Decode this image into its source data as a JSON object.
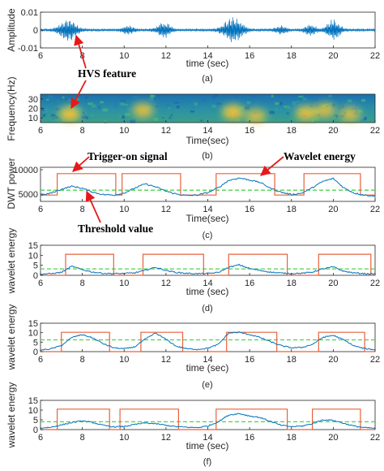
{
  "chart_data": [
    {
      "type": "line",
      "x_range": [
        6,
        22
      ],
      "xticks": [
        6,
        8,
        10,
        12,
        14,
        16,
        18,
        20,
        22
      ],
      "ylim": [
        -0.01,
        0.01
      ],
      "yticks": [
        "0.01",
        "0",
        "-0.01"
      ],
      "xlabel": "time (sec)",
      "ylabel": "Amplitude",
      "caption": "(a)",
      "series": [
        {
          "color": "#0072BD",
          "bursts": [
            {
              "center": 7.3,
              "width": 0.45,
              "amp": 0.006
            },
            {
              "center": 10.2,
              "width": 0.3,
              "amp": 0.002
            },
            {
              "center": 11.9,
              "width": 0.35,
              "amp": 0.004
            },
            {
              "center": 15.2,
              "width": 0.5,
              "amp": 0.007
            },
            {
              "center": 17.5,
              "width": 0.3,
              "amp": 0.002
            },
            {
              "center": 18.9,
              "width": 0.3,
              "amp": 0.003
            },
            {
              "center": 20.0,
              "width": 0.35,
              "amp": 0.006
            }
          ],
          "noise": 0.0008
        }
      ]
    },
    {
      "type": "heatmap",
      "x_range": [
        6,
        22
      ],
      "xticks": [
        6,
        8,
        10,
        12,
        14,
        16,
        18,
        20,
        22
      ],
      "ylim": [
        5,
        35
      ],
      "yticks": [
        30,
        20,
        10
      ],
      "xlabel": "Time(sec)",
      "ylabel": "Frequency(Hz)",
      "caption": "(b)",
      "hot_spots": [
        {
          "t": 7.4,
          "f": 14,
          "intensity": 0.95
        },
        {
          "t": 10.9,
          "f": 18,
          "intensity": 0.8
        },
        {
          "t": 15.2,
          "f": 16,
          "intensity": 0.95
        },
        {
          "t": 16.3,
          "f": 12,
          "intensity": 0.7
        },
        {
          "t": 18.7,
          "f": 15,
          "intensity": 0.85
        },
        {
          "t": 19.6,
          "f": 18,
          "intensity": 0.75
        },
        {
          "t": 20.8,
          "f": 14,
          "intensity": 0.7
        }
      ]
    },
    {
      "type": "line",
      "x_range": [
        6,
        22
      ],
      "xticks": [
        6,
        8,
        10,
        12,
        14,
        16,
        18,
        20,
        22
      ],
      "ylim": [
        3500,
        10500
      ],
      "yticks": [
        10000,
        5000
      ],
      "xlabel": "Time(sec)",
      "ylabel": "DWT power",
      "caption": "(c)",
      "threshold": 5800,
      "trigger": {
        "low": 4800,
        "high": 9200,
        "windows": [
          [
            6.8,
            9.6
          ],
          [
            9.9,
            12.7
          ],
          [
            14.4,
            17.2
          ],
          [
            18.6,
            21.3
          ]
        ]
      },
      "energy": {
        "x": [
          6,
          6.5,
          7,
          7.5,
          8,
          8.5,
          9,
          9.5,
          10,
          10.5,
          11,
          11.5,
          12,
          12.5,
          13,
          13.5,
          14,
          14.5,
          15,
          15.5,
          16,
          16.5,
          17,
          17.5,
          18,
          18.5,
          19,
          19.5,
          20,
          20.5,
          21,
          21.5,
          22
        ],
        "y": [
          4700,
          5200,
          6000,
          6600,
          6200,
          5400,
          4900,
          4800,
          5200,
          6200,
          7100,
          6500,
          5600,
          5000,
          4700,
          4800,
          5300,
          6300,
          7800,
          8300,
          7900,
          7400,
          6200,
          5400,
          4900,
          5200,
          6300,
          7600,
          8200,
          6300,
          5200,
          4800,
          4600
        ]
      }
    },
    {
      "type": "line",
      "x_range": [
        6,
        22
      ],
      "xticks": [
        6,
        8,
        10,
        12,
        14,
        16,
        18,
        20,
        22
      ],
      "ylim": [
        0,
        15
      ],
      "yticks": [
        15,
        10,
        5,
        0
      ],
      "xlabel": "time (sec)",
      "ylabel": "wavelet energy",
      "caption": "(d)",
      "threshold": 3.2,
      "trigger": {
        "low": 0,
        "high": 10.5,
        "windows": [
          [
            7.2,
            9.5
          ],
          [
            10.9,
            13.8
          ],
          [
            15.0,
            17.8
          ],
          [
            19.3,
            21.8
          ]
        ]
      },
      "energy": {
        "x": [
          6,
          6.5,
          7,
          7.5,
          8,
          8.5,
          9,
          9.5,
          10,
          10.5,
          11,
          11.5,
          12,
          12.5,
          13,
          13.5,
          14,
          14.5,
          15,
          15.5,
          16,
          16.5,
          17,
          17.5,
          18,
          18.5,
          19,
          19.5,
          20,
          20.5,
          21,
          21.5,
          22
        ],
        "y": [
          0.6,
          0.8,
          1.5,
          4.5,
          2.8,
          1.6,
          1.0,
          0.8,
          0.9,
          1.2,
          2.5,
          4.0,
          2.4,
          1.4,
          1.0,
          0.8,
          0.9,
          1.4,
          4.0,
          5.2,
          3.4,
          2.4,
          1.6,
          1.1,
          0.9,
          1.0,
          1.6,
          3.2,
          4.2,
          2.0,
          1.2,
          0.8,
          0.6
        ]
      }
    },
    {
      "type": "line",
      "x_range": [
        6,
        22
      ],
      "xticks": [
        6,
        8,
        10,
        12,
        14,
        16,
        18,
        20,
        22
      ],
      "ylim": [
        0,
        15
      ],
      "yticks": [
        15,
        10,
        5,
        0
      ],
      "xlabel": "time (sec)",
      "ylabel": "wavelet energy",
      "caption": "(e)",
      "threshold": 6.2,
      "trigger": {
        "low": 0,
        "high": 10.2,
        "windows": [
          [
            7.0,
            9.3
          ],
          [
            10.8,
            12.8
          ],
          [
            14.9,
            17.3
          ],
          [
            19.3,
            21.5
          ]
        ]
      },
      "energy": {
        "x": [
          6,
          6.5,
          7,
          7.5,
          8,
          8.5,
          9,
          9.5,
          10,
          10.5,
          11,
          11.5,
          12,
          12.5,
          13,
          13.5,
          14,
          14.5,
          15,
          15.5,
          16,
          16.5,
          17,
          17.5,
          18,
          18.5,
          19,
          19.5,
          20,
          20.5,
          21,
          21.5,
          22
        ],
        "y": [
          0.8,
          1.5,
          3.2,
          7.5,
          9.0,
          7.2,
          4.2,
          2.0,
          1.5,
          2.5,
          6.5,
          9.8,
          6.5,
          2.8,
          1.5,
          1.2,
          1.8,
          3.8,
          9.8,
          10.2,
          9.0,
          7.5,
          5.2,
          3.2,
          2.0,
          2.2,
          3.8,
          7.5,
          8.6,
          6.2,
          3.0,
          1.6,
          1.0
        ]
      }
    },
    {
      "type": "line",
      "x_range": [
        6,
        22
      ],
      "xticks": [
        6,
        8,
        10,
        12,
        14,
        16,
        18,
        20,
        22
      ],
      "ylim": [
        0,
        15
      ],
      "yticks": [
        15,
        10,
        5,
        0
      ],
      "xlabel": "time (sec)",
      "ylabel": "wavelet energy",
      "caption": "(f)",
      "threshold": 4.0,
      "trigger": {
        "low": 0,
        "high": 10.5,
        "windows": [
          [
            6.8,
            9.3
          ],
          [
            9.8,
            12.6
          ],
          [
            14.4,
            17.8
          ],
          [
            19.0,
            21.3
          ]
        ]
      },
      "energy": {
        "x": [
          6,
          6.5,
          7,
          7.5,
          8,
          8.5,
          9,
          9.5,
          10,
          10.5,
          11,
          11.5,
          12,
          12.5,
          13,
          13.5,
          14,
          14.5,
          15,
          15.5,
          16,
          16.5,
          17,
          17.5,
          18,
          18.5,
          19,
          19.5,
          20,
          20.5,
          21,
          21.5,
          22
        ],
        "y": [
          0.8,
          1.2,
          2.4,
          3.6,
          4.5,
          3.6,
          2.2,
          1.4,
          1.6,
          2.6,
          3.4,
          3.0,
          2.2,
          1.5,
          1.2,
          1.0,
          1.8,
          4.0,
          7.5,
          8.2,
          7.0,
          6.2,
          4.2,
          2.2,
          1.5,
          1.8,
          3.0,
          5.0,
          4.8,
          3.2,
          1.8,
          1.0,
          0.6
        ]
      }
    }
  ],
  "annotations": {
    "hvs": "HVS feature",
    "trigger": "Trigger-on signal",
    "wavelet": "Wavelet energy",
    "threshold": "Threshold value"
  },
  "colors": {
    "signal": "#0072BD",
    "trigger": "#E8603C",
    "threshold": "#4CD44C",
    "arrow": "#E5191A"
  }
}
